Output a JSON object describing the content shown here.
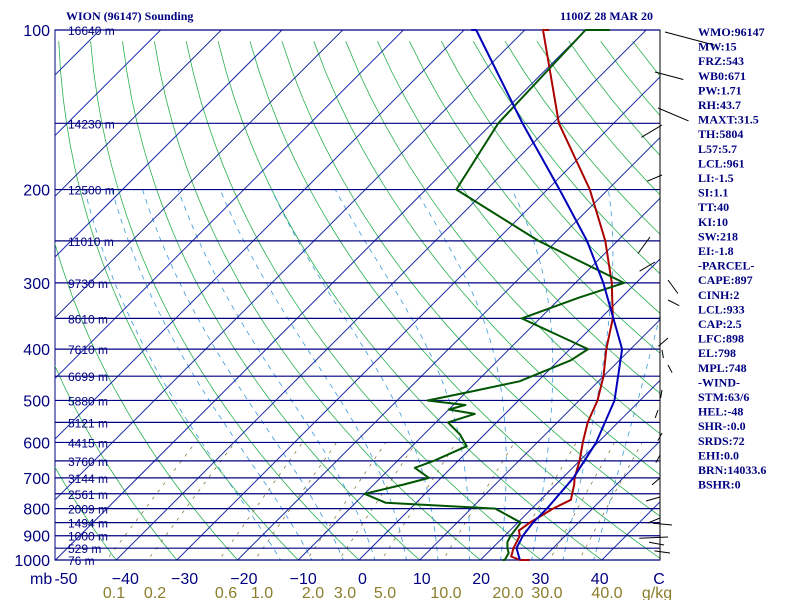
{
  "title_left": "WION (96147) Sounding",
  "title_right": "1100Z 28 MAR 20",
  "chart_data": {
    "type": "line",
    "pressure_ticks": [
      "100",
      "200",
      "300",
      "400",
      "500",
      "600",
      "700",
      "800",
      "900",
      "1000"
    ],
    "pressure_unit": "mb",
    "temperature_ticks": [
      "-50",
      "−40",
      "−30",
      "−20",
      "−10",
      "0",
      "10",
      "20",
      "30",
      "40",
      "C"
    ],
    "mixing_ratio_ticks": [
      "0.1",
      "0.2",
      "0.6",
      "1.0",
      "2.0",
      "3.0",
      "5.0",
      "10.0",
      "20.0",
      "30.0",
      "40.0",
      "g/kg"
    ],
    "height_labels": [
      {
        "text": "16640 m",
        "p": 100
      },
      {
        "text": "14230 m",
        "p": 150
      },
      {
        "text": "12500 m",
        "p": 200
      },
      {
        "text": "11010 m",
        "p": 250
      },
      {
        "text": "9730 m",
        "p": 300
      },
      {
        "text": "8610 m",
        "p": 350
      },
      {
        "text": "7610 m",
        "p": 400
      },
      {
        "text": "6699 m",
        "p": 450
      },
      {
        "text": "5880 m",
        "p": 500
      },
      {
        "text": "5121 m",
        "p": 550
      },
      {
        "text": "4415 m",
        "p": 600
      },
      {
        "text": "3760 m",
        "p": 650
      },
      {
        "text": "3144 m",
        "p": 700
      },
      {
        "text": "2561 m",
        "p": 750
      },
      {
        "text": "2009 m",
        "p": 800
      },
      {
        "text": "1494 m",
        "p": 850
      },
      {
        "text": "1000 m",
        "p": 900
      },
      {
        "text": "529 m",
        "p": 950
      },
      {
        "text": "76 m",
        "p": 1000
      }
    ],
    "series": [
      {
        "name": "Temperature",
        "color": "#aa0000",
        "points": [
          [
            1010,
            28.5
          ],
          [
            1000,
            26.5
          ],
          [
            985,
            24.5
          ],
          [
            950,
            23.5
          ],
          [
            925,
            23
          ],
          [
            900,
            22.5
          ],
          [
            880,
            21.5
          ],
          [
            850,
            22
          ],
          [
            800,
            23.5
          ],
          [
            770,
            25
          ],
          [
            720,
            23
          ],
          [
            700,
            22
          ],
          [
            650,
            20
          ],
          [
            600,
            17.5
          ],
          [
            550,
            15
          ],
          [
            500,
            13
          ],
          [
            450,
            10
          ],
          [
            400,
            6
          ],
          [
            350,
            2
          ],
          [
            300,
            -4
          ],
          [
            250,
            -12
          ],
          [
            200,
            -23
          ],
          [
            150,
            -39
          ],
          [
            100,
            -57
          ],
          [
            90,
            -60
          ]
        ]
      },
      {
        "name": "Dewpoint",
        "color": "#005500",
        "points": [
          [
            1010,
            24
          ],
          [
            1000,
            24
          ],
          [
            970,
            23.5
          ],
          [
            950,
            22.5
          ],
          [
            925,
            21.5
          ],
          [
            900,
            21
          ],
          [
            850,
            20.5
          ],
          [
            800,
            14
          ],
          [
            780,
            -5
          ],
          [
            750,
            -10
          ],
          [
            720,
            -5
          ],
          [
            700,
            -2
          ],
          [
            670,
            -6
          ],
          [
            650,
            -4
          ],
          [
            610,
            -1
          ],
          [
            580,
            -4
          ],
          [
            550,
            -8
          ],
          [
            530,
            -5
          ],
          [
            520,
            -10
          ],
          [
            510,
            -8
          ],
          [
            500,
            -15
          ],
          [
            480,
            -9
          ],
          [
            460,
            -3
          ],
          [
            420,
            2
          ],
          [
            400,
            3
          ],
          [
            350,
            -13
          ],
          [
            320,
            -7
          ],
          [
            300,
            -2
          ],
          [
            250,
            -23
          ],
          [
            200,
            -45
          ],
          [
            150,
            -49
          ],
          [
            100,
            -50
          ],
          [
            90,
            -50
          ]
        ]
      },
      {
        "name": "Parcel",
        "color": "#0000bb",
        "points": [
          [
            1000,
            26.5
          ],
          [
            950,
            24
          ],
          [
            900,
            23
          ],
          [
            850,
            22.5
          ],
          [
            800,
            22.5
          ],
          [
            700,
            21.8
          ],
          [
            600,
            19.7
          ],
          [
            500,
            15.8
          ],
          [
            400,
            8.6
          ],
          [
            300,
            -5.4
          ],
          [
            250,
            -15
          ],
          [
            200,
            -28
          ],
          [
            150,
            -45
          ],
          [
            100,
            -68
          ],
          [
            92,
            -72
          ]
        ]
      }
    ]
  },
  "indices": [
    "WMO:96147",
    "MW:15",
    "FRZ:543",
    "WB0:671",
    "PW:1.71",
    "RH:43.7",
    "MAXT:31.5",
    "TH:5804",
    "L57:5.7",
    "LCL:961",
    "LI:-1.5",
    "SI:1.1",
    "TT:40",
    "KI:10",
    "SW:218",
    "EI:-1.8",
    "-PARCEL-",
    "CAPE:897",
    "CINH:2",
    "LCL:933",
    "CAP:2.5",
    "LFC:898",
    "EL:798",
    "MPL:748",
    "-WIND-",
    "STM:63/6",
    "HEL:-48",
    "SHR-:0.0",
    "SRDS:72",
    "EHI:0.0",
    "BRN:14033.6",
    "BSHR:0"
  ],
  "colors": {
    "isobar": "#000080",
    "isotherm": "#1a2aa8",
    "dry_adiabat": "#2ab050",
    "moist_adiabat": "#3a9adc",
    "mixing_ratio": "#7a6a2a",
    "temperature": "#aa0000",
    "dewpoint": "#005500",
    "parcel": "#0000bb",
    "wind": "#000000"
  }
}
